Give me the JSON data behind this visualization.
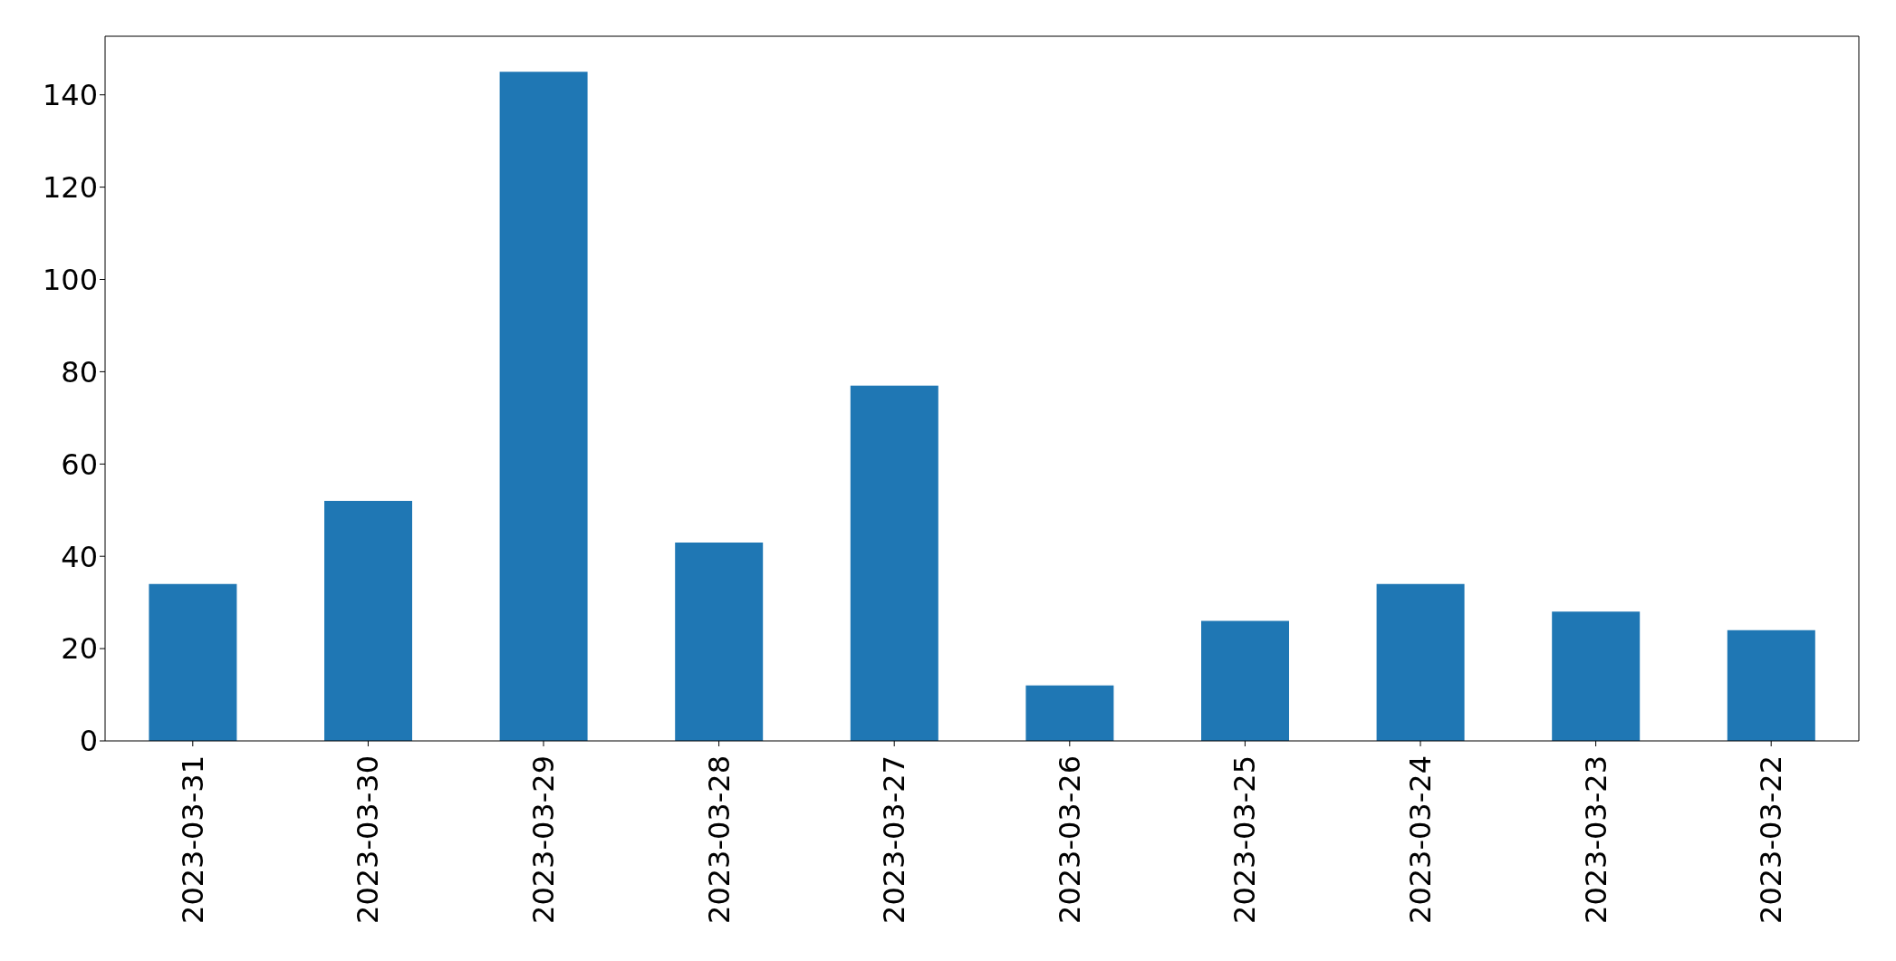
{
  "chart_data": {
    "type": "bar",
    "categories": [
      "2023-03-31",
      "2023-03-30",
      "2023-03-29",
      "2023-03-28",
      "2023-03-27",
      "2023-03-26",
      "2023-03-25",
      "2023-03-24",
      "2023-03-23",
      "2023-03-22"
    ],
    "values": [
      34,
      52,
      145,
      43,
      77,
      12,
      26,
      34,
      28,
      24
    ],
    "color": "#1f77b4",
    "ylim": [
      0,
      152.7
    ],
    "yticks": [
      0,
      20,
      40,
      60,
      80,
      100,
      120,
      140
    ],
    "grid": false
  }
}
